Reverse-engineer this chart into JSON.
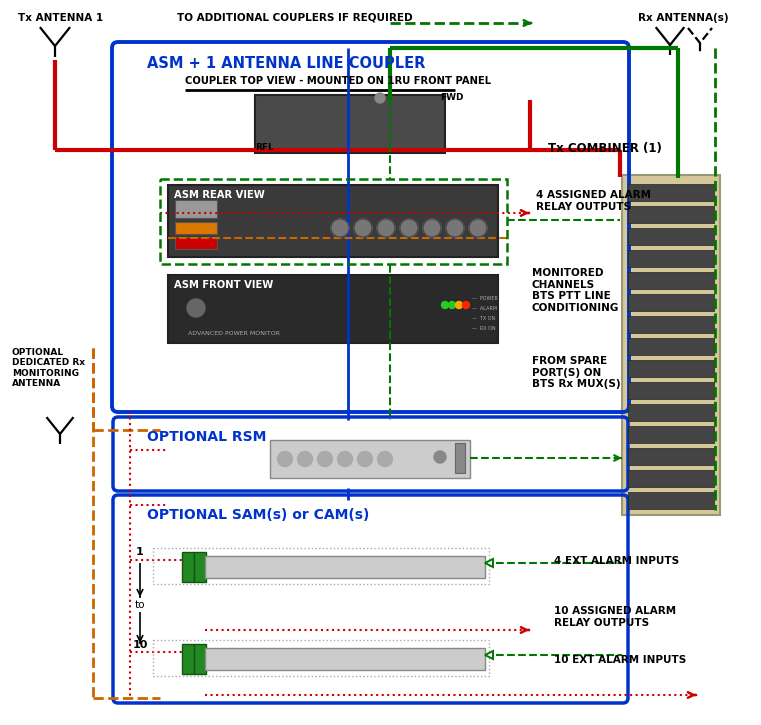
{
  "bg": "#ffffff",
  "red": "#cc0000",
  "dkgreen": "#007700",
  "blue": "#0033cc",
  "orange": "#cc6600",
  "black": "#000000",
  "gray_dark": "#333333",
  "gray_med": "#777777",
  "device_dark": "#3a3a3a",
  "device_gray": "#cccccc",
  "cabinet_bg": "#d4c89a",
  "labels": {
    "tx_ant": "Tx ANTENNA 1",
    "rx_ant": "Rx ANTENNA(s)",
    "to_add": "TO ADDITIONAL COUPLERS IF REQUIRED",
    "asm_coupler": "ASM + 1 ANTENNA LINE COUPLER",
    "coupler_top": "COUPLER TOP VIEW - MOUNTED ON 1RU FRONT PANEL",
    "fwd": "FWD",
    "rfl": "RFL",
    "asm_rear": "ASM REAR VIEW",
    "asm_front": "ASM FRONT VIEW",
    "adv_pm": "ADVANCED POWER MONITOR",
    "tx_comb": "Tx COMBINER (1)",
    "alarm4": "4 ASSIGNED ALARM\nRELAY OUTPUTS",
    "monitored": "MONITORED\nCHANNELS\nBTS PTT LINE\nCONDITIONING",
    "from_spare": "FROM SPARE\nPORT(S) ON\nBTS Rx MUX(S)",
    "opt_ded": "OPTIONAL\nDEDICATED Rx\nMONITORING\nANTENNA",
    "opt_rsm": "OPTIONAL RSM",
    "opt_sam": "OPTIONAL SAM(s) or CAM(s)",
    "ext4": "4 EXT ALARM INPUTS",
    "alarm10": "10 ASSIGNED ALARM\nRELAY OUTPUTS",
    "ext10": "10 EXT ALARM INPUTS"
  }
}
